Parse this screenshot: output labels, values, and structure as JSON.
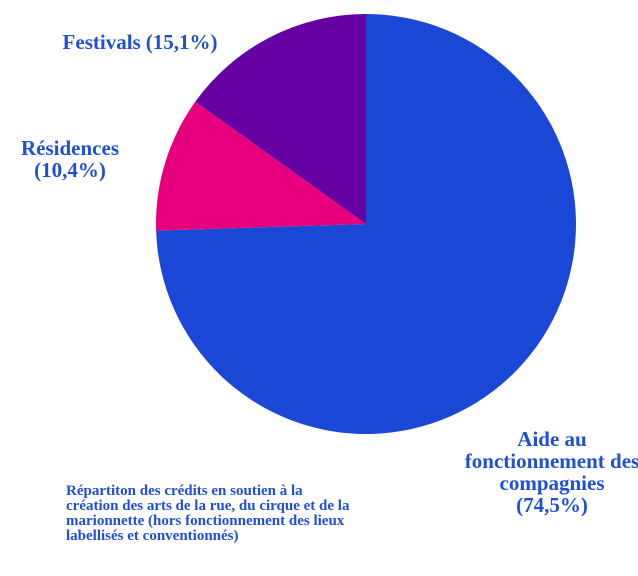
{
  "chart_data": {
    "type": "pie",
    "categories": [
      "Aide au fonctionnement des compagnies",
      "Résidences",
      "Festivals"
    ],
    "values": [
      74.5,
      10.4,
      15.1
    ],
    "value_labels": [
      "(74,5%)",
      "(10,4%)",
      "(15,1%)"
    ],
    "colors": [
      "#1a47d6",
      "#e6007e",
      "#6600a3"
    ],
    "annotation": "Répartiton des crédits en soutien à la création des arts de la rue, du cirque et de la marionnette (hors fonctionnement des lieux labellisés et conventionnés)"
  }
}
